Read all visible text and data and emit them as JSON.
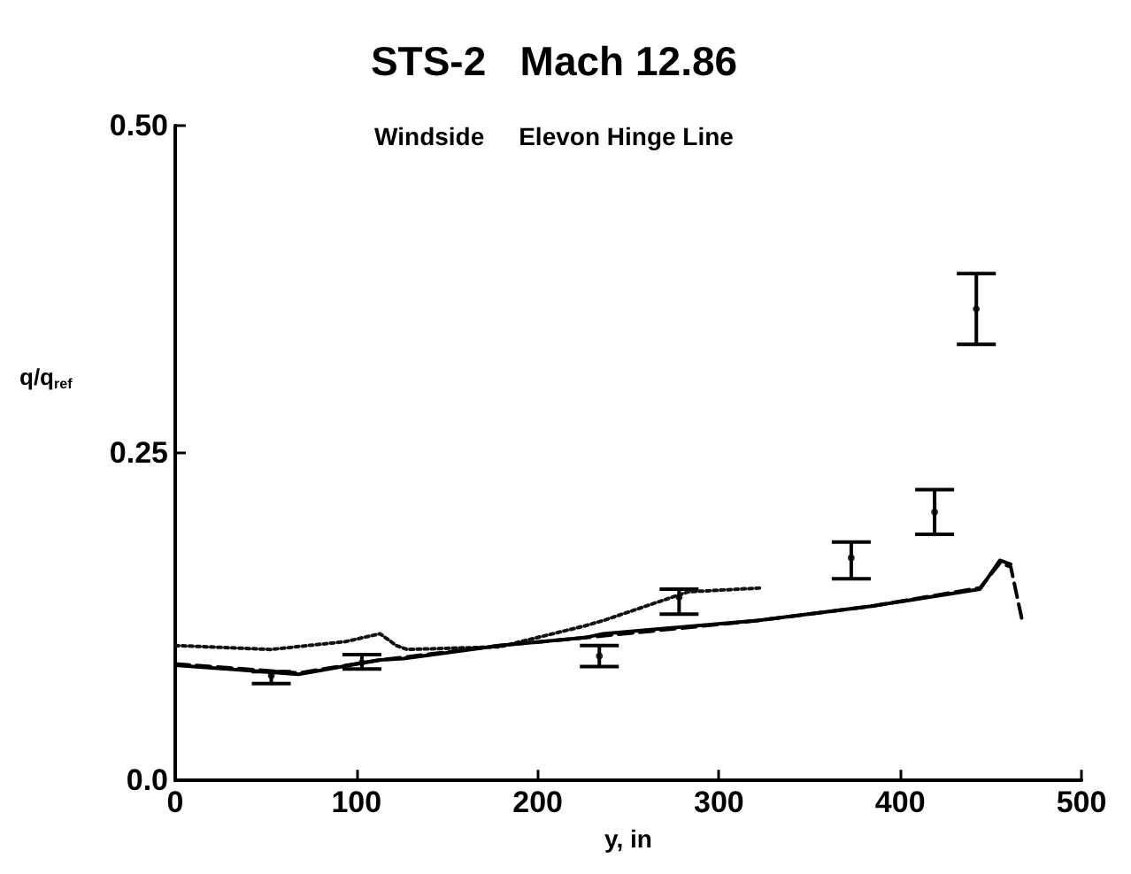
{
  "chart_data": {
    "type": "line",
    "title": "STS-2   Mach 12.86",
    "subtitle": "Windside     Elevon Hinge Line",
    "xlabel": "y, in",
    "ylabel": "q/q$_{ref}$",
    "xlim": [
      0,
      500
    ],
    "xticks": [
      0,
      100,
      200,
      300,
      400,
      500
    ],
    "ylim": [
      0,
      0.5
    ],
    "yticks": [
      {
        "value": 0,
        "label": "0.0"
      },
      {
        "value": 0.25,
        "label": "0.25"
      },
      {
        "value": 0.5,
        "label": "0.50"
      }
    ],
    "grid": false,
    "series": [
      {
        "line_style": "dotted",
        "marker": "none",
        "color": "#111111",
        "x": [
          0,
          53,
          94,
          113,
          122,
          128,
          179,
          226,
          236,
          283,
          324
        ],
        "values": [
          0.103,
          0.1,
          0.106,
          0.112,
          0.103,
          0.1,
          0.102,
          0.118,
          0.122,
          0.144,
          0.147
        ]
      },
      {
        "line_style": "solid",
        "marker": "none",
        "color": "#000000",
        "x": [
          0,
          68,
          113,
          126,
          179,
          226,
          236,
          321,
          384,
          444,
          455,
          461
        ],
        "values": [
          0.088,
          0.081,
          0.092,
          0.093,
          0.103,
          0.109,
          0.112,
          0.122,
          0.133,
          0.146,
          0.168,
          0.165
        ]
      },
      {
        "line_style": "dashed",
        "marker": "none",
        "color": "#000000",
        "x": [
          0,
          68,
          113,
          126,
          179,
          226,
          321,
          384,
          444,
          455,
          461,
          467
        ],
        "values": [
          0.089,
          0.082,
          0.092,
          0.094,
          0.103,
          0.109,
          0.122,
          0.133,
          0.147,
          0.166,
          0.163,
          0.124
        ]
      },
      {
        "type": "scatter",
        "marker": "circle",
        "color": "#000000",
        "x": [
          53,
          103,
          234,
          278,
          373,
          419,
          442
        ],
        "values": [
          0.08,
          0.09,
          0.095,
          0.14,
          0.17,
          0.205,
          0.36
        ],
        "errors": [
          [
            0.074,
            0.083
          ],
          [
            0.085,
            0.096
          ],
          [
            0.087,
            0.103
          ],
          [
            0.127,
            0.146
          ],
          [
            0.154,
            0.182
          ],
          [
            0.188,
            0.222
          ],
          [
            0.333,
            0.387
          ]
        ]
      }
    ]
  }
}
